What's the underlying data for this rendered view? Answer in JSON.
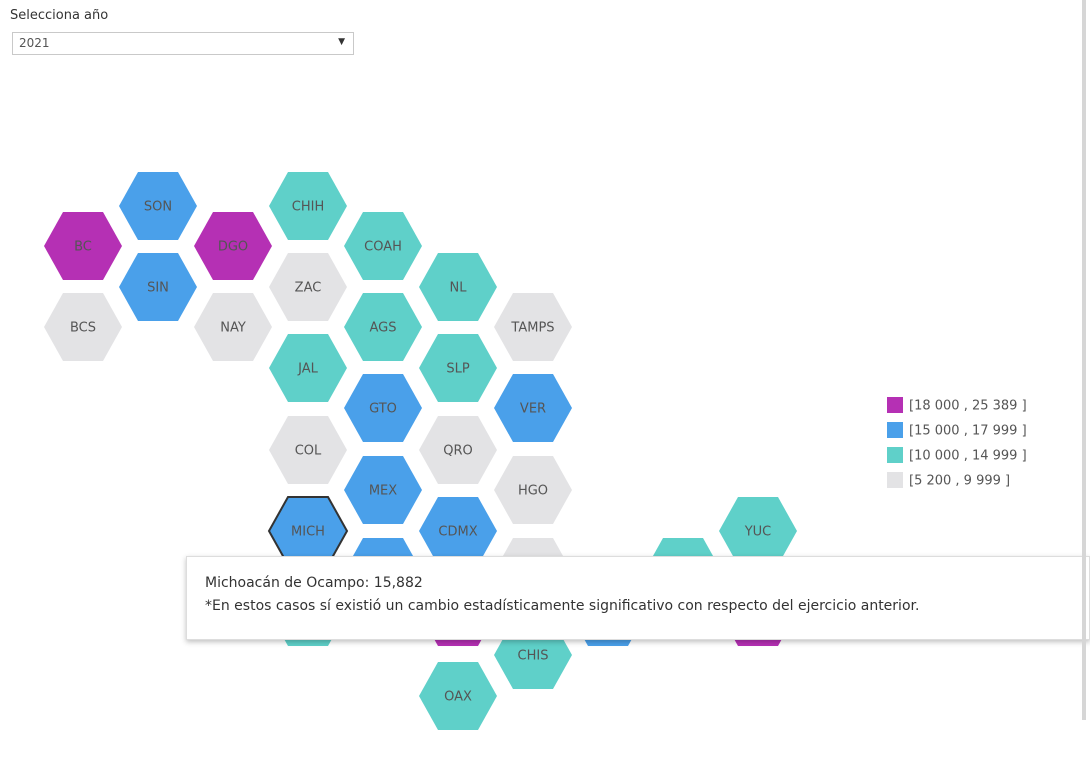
{
  "control": {
    "label": "Selecciona año",
    "selected": "2021"
  },
  "legend": [
    {
      "label": "[18 000 , 25 389 ]",
      "color": "#b530b4"
    },
    {
      "label": "[15 000 , 17 999 ]",
      "color": "#4aa0ea"
    },
    {
      "label": "[10 000 , 14 999 ]",
      "color": "#5fd0c9"
    },
    {
      "label": "[5 200 , 9 999 ]",
      "color": "#e3e3e5"
    }
  ],
  "hexes": [
    {
      "label": "SON",
      "group": 1
    },
    {
      "label": "BC",
      "group": 0
    },
    {
      "label": "SIN",
      "group": 1
    },
    {
      "label": "BCS",
      "group": 3
    },
    {
      "label": "DGO",
      "group": 0
    },
    {
      "label": "NAY",
      "group": 3
    },
    {
      "label": "CHIH",
      "group": 2
    },
    {
      "label": "ZAC",
      "group": 3
    },
    {
      "label": "JAL",
      "group": 2
    },
    {
      "label": "COL",
      "group": 3
    },
    {
      "label": "MICH",
      "group": 1,
      "selected": true
    },
    {
      "label": "COAH",
      "group": 2
    },
    {
      "label": "AGS",
      "group": 2
    },
    {
      "label": "GTO",
      "group": 1
    },
    {
      "label": "MEX",
      "group": 1
    },
    {
      "label": "NL",
      "group": 2
    },
    {
      "label": "SLP",
      "group": 2
    },
    {
      "label": "QRO",
      "group": 3
    },
    {
      "label": "CDMX",
      "group": 1
    },
    {
      "label": "TAMPS",
      "group": 3
    },
    {
      "label": "VER",
      "group": 1
    },
    {
      "label": "HGO",
      "group": 3
    },
    {
      "label": "YUC",
      "group": 2
    },
    {
      "label": "CHIS",
      "group": 2
    },
    {
      "label": "OAX",
      "group": 2
    },
    {
      "label": null,
      "group": 1
    },
    {
      "label": null,
      "group": 3
    },
    {
      "label": null,
      "group": 2
    },
    {
      "label": null,
      "group": 2
    },
    {
      "label": null,
      "group": 0
    },
    {
      "label": null,
      "group": 1
    },
    {
      "label": null,
      "group": 0
    }
  ],
  "tooltip": {
    "title": "Michoacán de Ocampo: 15,882",
    "note": "*En estos casos sí existió un cambio estadísticamente significativo con respecto del ejercicio anterior."
  }
}
